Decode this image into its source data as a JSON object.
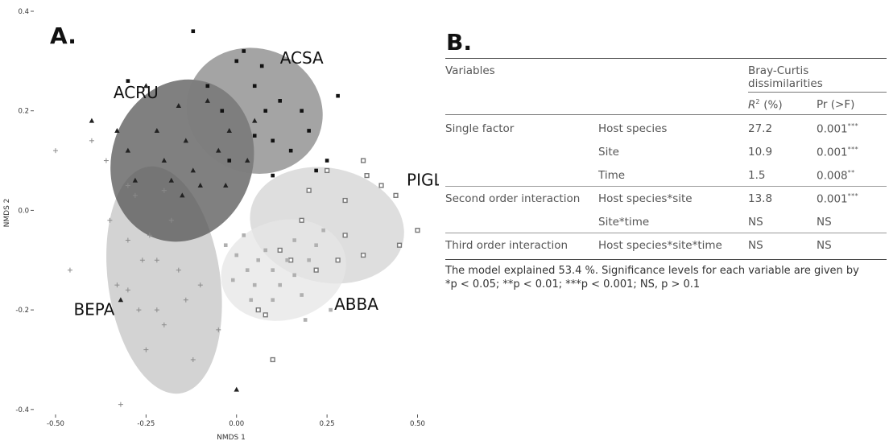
{
  "panel_a": {
    "letter": "A.",
    "chart_data": {
      "type": "scatter",
      "xlabel": "NMDS 1",
      "ylabel": "NMDS 2",
      "xlim": [
        -0.56,
        0.53
      ],
      "ylim": [
        -0.41,
        0.4
      ],
      "x_ticks": [
        -0.5,
        -0.25,
        0.0,
        0.25,
        0.5
      ],
      "x_tick_labels": [
        "-0.50",
        "-0.25",
        "0.00",
        "0.25",
        "0.50"
      ],
      "y_ticks": [
        -0.4,
        -0.2,
        0.0,
        0.2,
        0.4
      ],
      "y_tick_labels": [
        "-0.4",
        "-0.2",
        "0.0",
        "0.2",
        "0.4"
      ],
      "grid": false,
      "groups": [
        {
          "label": "BEPA",
          "marker": "cross",
          "color": "#8a8a8a",
          "ellipse_fill": "#c4c4c4",
          "ellipse_opacity": 0.75,
          "ellipse": {
            "cx": -0.2,
            "cy": -0.14,
            "rx": 0.155,
            "ry": 0.23,
            "angle_deg": 8
          },
          "points": [
            [
              -0.5,
              0.12
            ],
            [
              -0.46,
              -0.12
            ],
            [
              -0.4,
              0.14
            ],
            [
              -0.36,
              0.1
            ],
            [
              -0.3,
              0.05
            ],
            [
              -0.28,
              0.03
            ],
            [
              -0.35,
              -0.02
            ],
            [
              -0.3,
              -0.06
            ],
            [
              -0.26,
              -0.1
            ],
            [
              -0.33,
              -0.15
            ],
            [
              -0.3,
              -0.16
            ],
            [
              -0.27,
              -0.2
            ],
            [
              -0.22,
              -0.2
            ],
            [
              -0.2,
              -0.23
            ],
            [
              -0.25,
              -0.28
            ],
            [
              -0.12,
              -0.3
            ],
            [
              -0.32,
              -0.39
            ],
            [
              -0.16,
              -0.12
            ],
            [
              -0.14,
              -0.18
            ],
            [
              -0.22,
              -0.1
            ],
            [
              -0.24,
              -0.05
            ],
            [
              -0.05,
              -0.24
            ],
            [
              -0.1,
              -0.15
            ],
            [
              -0.18,
              -0.02
            ],
            [
              -0.2,
              0.04
            ]
          ]
        },
        {
          "label": "ACRU",
          "marker": "triangle",
          "color": "#222222",
          "ellipse_fill": "#555555",
          "ellipse_opacity": 0.75,
          "ellipse": {
            "cx": -0.15,
            "cy": 0.1,
            "rx": 0.195,
            "ry": 0.165,
            "angle_deg": -18
          },
          "points": [
            [
              -0.4,
              0.18
            ],
            [
              -0.33,
              0.16
            ],
            [
              -0.3,
              0.12
            ],
            [
              -0.28,
              0.06
            ],
            [
              -0.22,
              0.16
            ],
            [
              -0.2,
              0.1
            ],
            [
              -0.18,
              0.06
            ],
            [
              -0.16,
              0.21
            ],
            [
              -0.14,
              0.14
            ],
            [
              -0.12,
              0.08
            ],
            [
              -0.1,
              0.05
            ],
            [
              -0.05,
              0.12
            ],
            [
              -0.03,
              0.05
            ],
            [
              -0.08,
              0.22
            ],
            [
              -0.02,
              0.16
            ],
            [
              0.05,
              0.18
            ],
            [
              -0.25,
              0.25
            ],
            [
              -0.15,
              0.03
            ],
            [
              -0.32,
              -0.18
            ],
            [
              0.0,
              -0.36
            ],
            [
              0.03,
              0.1
            ]
          ]
        },
        {
          "label": "ACSA",
          "marker": "square",
          "color": "#111111",
          "ellipse_fill": "#7d7d7d",
          "ellipse_opacity": 0.7,
          "ellipse": {
            "cx": 0.05,
            "cy": 0.2,
            "rx": 0.19,
            "ry": 0.125,
            "angle_deg": -20
          },
          "points": [
            [
              -0.12,
              0.36
            ],
            [
              -0.3,
              0.26
            ],
            [
              -0.08,
              0.25
            ],
            [
              0.0,
              0.3
            ],
            [
              0.05,
              0.25
            ],
            [
              0.08,
              0.2
            ],
            [
              0.1,
              0.14
            ],
            [
              0.12,
              0.22
            ],
            [
              0.15,
              0.12
            ],
            [
              0.18,
              0.2
            ],
            [
              0.2,
              0.16
            ],
            [
              0.22,
              0.08
            ],
            [
              0.25,
              0.1
            ],
            [
              0.28,
              0.23
            ],
            [
              0.05,
              0.15
            ],
            [
              -0.02,
              0.1
            ],
            [
              0.1,
              0.07
            ],
            [
              0.02,
              0.32
            ],
            [
              0.07,
              0.29
            ],
            [
              -0.04,
              0.2
            ]
          ]
        },
        {
          "label": "PIGL",
          "marker": "hatched-square",
          "color": "#777777",
          "ellipse_fill": "#d3d3d3",
          "ellipse_opacity": 0.75,
          "ellipse": {
            "cx": 0.25,
            "cy": -0.03,
            "rx": 0.215,
            "ry": 0.115,
            "angle_deg": -12
          },
          "points": [
            [
              0.35,
              0.1
            ],
            [
              0.44,
              0.03
            ],
            [
              0.5,
              -0.04
            ],
            [
              0.45,
              -0.07
            ],
            [
              0.4,
              0.05
            ],
            [
              0.3,
              0.02
            ],
            [
              0.25,
              0.08
            ],
            [
              0.2,
              0.04
            ],
            [
              0.18,
              -0.02
            ],
            [
              0.3,
              -0.05
            ],
            [
              0.35,
              -0.09
            ],
            [
              0.28,
              -0.1
            ],
            [
              0.1,
              -0.3
            ],
            [
              0.08,
              -0.21
            ],
            [
              0.06,
              -0.2
            ],
            [
              0.36,
              0.07
            ],
            [
              0.15,
              -0.1
            ],
            [
              0.12,
              -0.08
            ],
            [
              0.22,
              -0.12
            ]
          ]
        },
        {
          "label": "ABBA",
          "marker": "open-square",
          "color": "#b0b0b0",
          "ellipse_fill": "#e6e6e6",
          "ellipse_opacity": 0.75,
          "ellipse": {
            "cx": 0.13,
            "cy": -0.12,
            "rx": 0.175,
            "ry": 0.1,
            "angle_deg": 15
          },
          "points": [
            [
              -0.03,
              -0.07
            ],
            [
              0.0,
              -0.09
            ],
            [
              0.03,
              -0.12
            ],
            [
              0.05,
              -0.15
            ],
            [
              0.06,
              -0.1
            ],
            [
              0.08,
              -0.08
            ],
            [
              0.1,
              -0.12
            ],
            [
              0.12,
              -0.15
            ],
            [
              0.14,
              -0.1
            ],
            [
              0.16,
              -0.13
            ],
            [
              0.18,
              -0.17
            ],
            [
              0.2,
              -0.1
            ],
            [
              0.22,
              -0.07
            ],
            [
              0.24,
              -0.04
            ],
            [
              0.02,
              -0.05
            ],
            [
              -0.01,
              -0.14
            ],
            [
              0.04,
              -0.18
            ],
            [
              0.26,
              -0.2
            ],
            [
              0.1,
              -0.18
            ],
            [
              0.19,
              -0.22
            ],
            [
              0.16,
              -0.06
            ]
          ]
        }
      ]
    }
  },
  "panel_b": {
    "letter": "B.",
    "table": {
      "col_variables": "Variables",
      "col_group_line1": "Bray-Curtis",
      "col_group_line2": "dissimilarities",
      "col_r2_main": "R",
      "col_r2_sup": "2",
      "col_r2_unit": " (%)",
      "col_pr": "Pr (>F)",
      "rows": [
        {
          "group": "Single factor",
          "var": "Host species",
          "r2": "27.2",
          "pr": "0.001",
          "sig": "***"
        },
        {
          "group": "",
          "var": "Site",
          "r2": "10.9",
          "pr": "0.001",
          "sig": "***"
        },
        {
          "group": "",
          "var": "Time",
          "r2": "1.5",
          "pr": "0.008",
          "sig": "**"
        },
        {
          "group": "Second order interaction",
          "var": "Host species*site",
          "r2": "13.8",
          "pr": "0.001",
          "sig": "***"
        },
        {
          "group": "",
          "var": "Site*time",
          "r2": "NS",
          "pr": "NS",
          "sig": ""
        },
        {
          "group": "Third order interaction",
          "var": "Host species*site*time",
          "r2": "NS",
          "pr": "NS",
          "sig": ""
        }
      ],
      "footnote_line1": "The model explained 53.4 %. Significance levels for each variable are given by",
      "footnote_line2": "*p < 0.05; **p < 0.01; ***p < 0.001; NS, p > 0.1"
    }
  }
}
